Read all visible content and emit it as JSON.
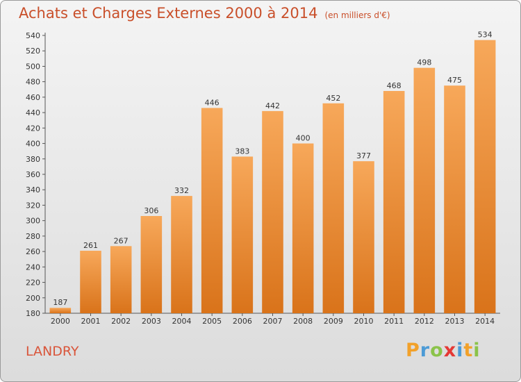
{
  "title": "Achats et Charges Externes 2000 à 2014",
  "unit": "(en milliers d'€)",
  "commune": "LANDRY",
  "logo": {
    "letters": [
      "P",
      "r",
      "o",
      "x",
      "i",
      "t",
      "i"
    ],
    "colors": [
      "#f2a12a",
      "#4c9bd6",
      "#8bc34a",
      "#e53935",
      "#4c9bd6",
      "#f2a12a",
      "#8bc34a"
    ]
  },
  "colors": {
    "bar_top": "#f7a85a",
    "bar_bottom": "#d9731a",
    "title": "#c94f2a",
    "commune": "#d9553a"
  },
  "chart_data": {
    "type": "bar",
    "title": "Achats et Charges Externes 2000 à 2014",
    "categories": [
      "2000",
      "2001",
      "2002",
      "2003",
      "2004",
      "2005",
      "2006",
      "2007",
      "2008",
      "2009",
      "2010",
      "2011",
      "2012",
      "2013",
      "2014"
    ],
    "values": [
      187,
      261,
      267,
      306,
      332,
      446,
      383,
      442,
      400,
      452,
      377,
      468,
      498,
      475,
      534
    ],
    "ylim": [
      180,
      540
    ],
    "yticks": [
      180,
      200,
      220,
      240,
      260,
      280,
      300,
      320,
      340,
      360,
      380,
      400,
      420,
      440,
      460,
      480,
      500,
      520,
      540
    ],
    "grid": false,
    "data_labels": true
  }
}
